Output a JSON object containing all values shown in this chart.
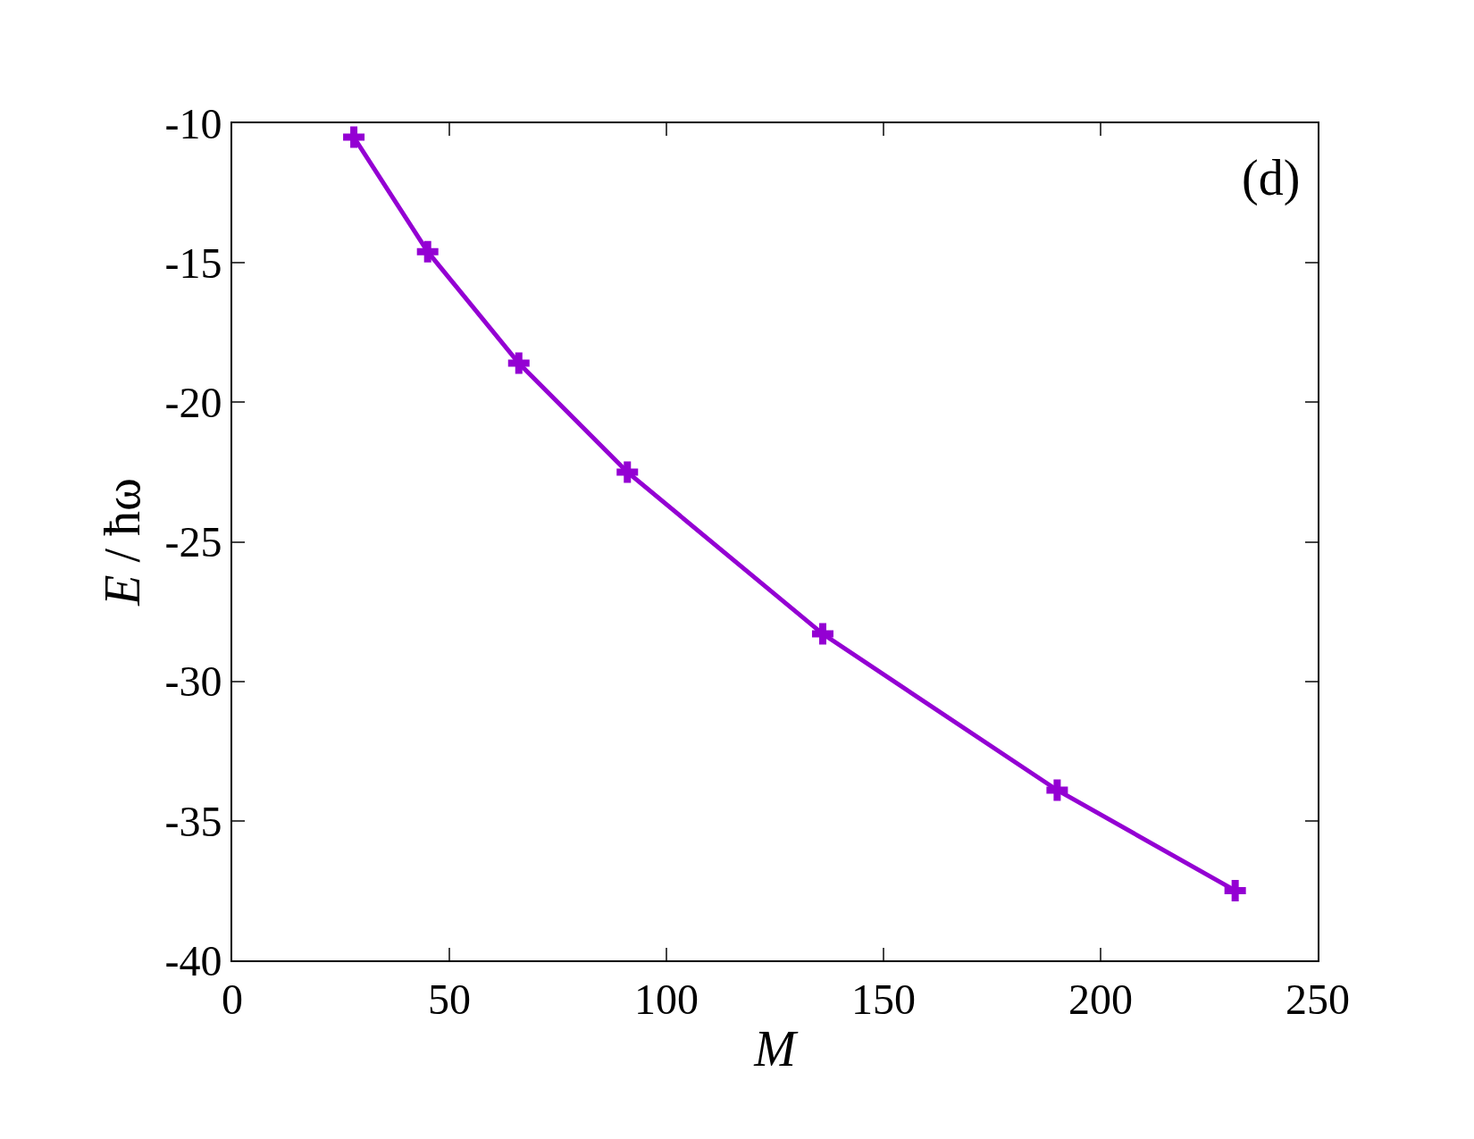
{
  "chart_data": {
    "type": "line",
    "xlabel": "M",
    "ylabel": "E / ħω",
    "annotations": [
      "(d)"
    ],
    "x": [
      28,
      45,
      66,
      91,
      136,
      190,
      231
    ],
    "series": [
      {
        "color": "#9400d3",
        "values": [
          -10.5,
          -14.6,
          -18.6,
          -22.5,
          -28.3,
          -33.9,
          -37.5
        ]
      }
    ],
    "xlim": [
      0,
      250
    ],
    "xticks": [
      0,
      50,
      100,
      150,
      200,
      250
    ],
    "ylim": [
      -40,
      -10
    ],
    "yticks": [
      -40,
      -35,
      -30,
      -25,
      -20,
      -15,
      -10
    ],
    "marker": "cross",
    "line_style": "solid",
    "grid": false
  }
}
